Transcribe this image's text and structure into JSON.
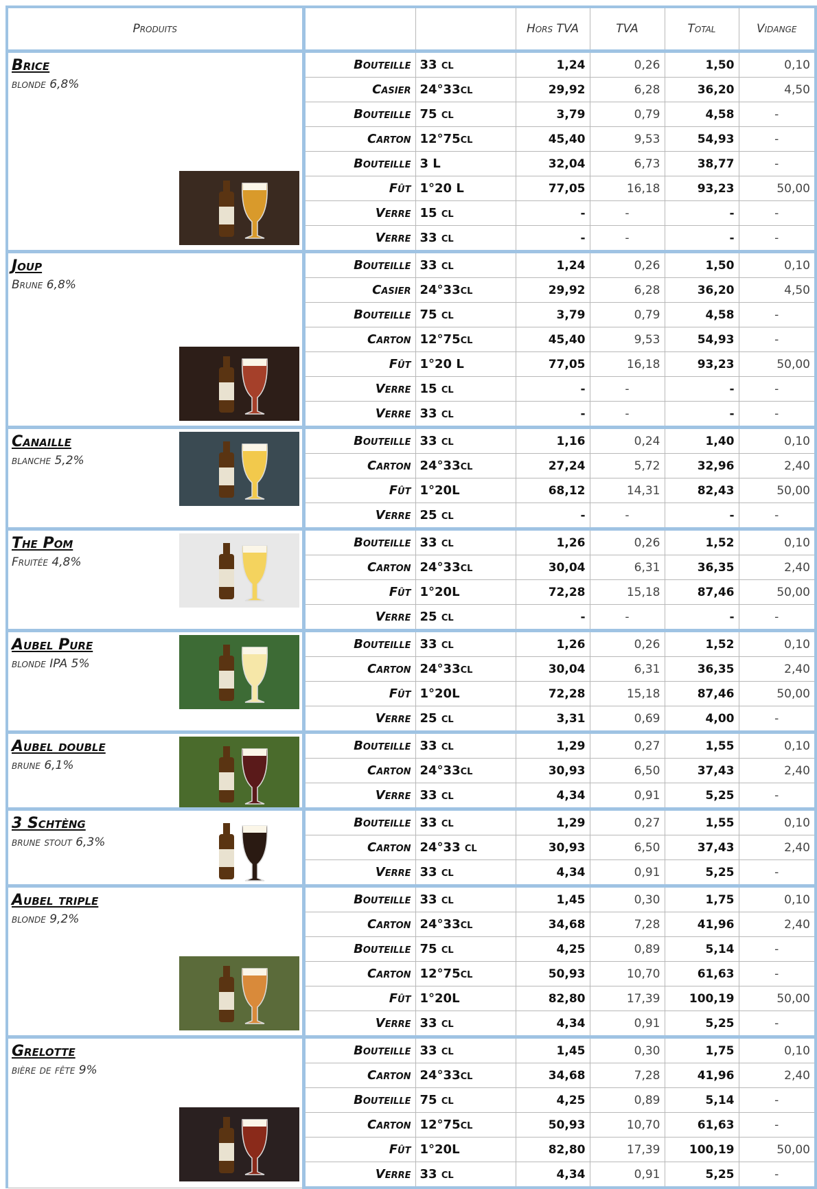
{
  "header": {
    "produits": "Produits",
    "hors_tva": "Hors TVA",
    "tva": "TVA",
    "total": "Total",
    "vidange": "Vidange"
  },
  "products": [
    {
      "name": "Brice",
      "desc": "blonde 6,8%",
      "rows": [
        [
          "Bouteille",
          "33 cl",
          "1,24",
          "0,26",
          "1,50",
          "0,10"
        ],
        [
          "Casier",
          "24°33cl",
          "29,92",
          "6,28",
          "36,20",
          "4,50"
        ],
        [
          "Bouteille",
          "75 cl",
          "3,79",
          "0,79",
          "4,58",
          "-"
        ],
        [
          "Carton",
          "12°75cl",
          "45,40",
          "9,53",
          "54,93",
          "-"
        ],
        [
          "Bouteille",
          "3 L",
          "32,04",
          "6,73",
          "38,77",
          "-"
        ],
        [
          "Fût",
          "1°20 L",
          "77,05",
          "16,18",
          "93,23",
          "50,00"
        ],
        [
          "Verre",
          "15 cl",
          "-",
          "-",
          "-",
          "-"
        ],
        [
          "Verre",
          "33 cl",
          "-",
          "-",
          "-",
          "-"
        ]
      ]
    },
    {
      "name": "Joup",
      "desc": "Brune 6,8%",
      "rows": [
        [
          "Bouteille",
          "33 cl",
          "1,24",
          "0,26",
          "1,50",
          "0,10"
        ],
        [
          "Casier",
          "24°33cl",
          "29,92",
          "6,28",
          "36,20",
          "4,50"
        ],
        [
          "Bouteille",
          "75 cl",
          "3,79",
          "0,79",
          "4,58",
          "-"
        ],
        [
          "Carton",
          "12°75cl",
          "45,40",
          "9,53",
          "54,93",
          "-"
        ],
        [
          "Fût",
          "1°20 L",
          "77,05",
          "16,18",
          "93,23",
          "50,00"
        ],
        [
          "Verre",
          "15 cl",
          "-",
          "-",
          "-",
          "-"
        ],
        [
          "Verre",
          "33 cl",
          "-",
          "-",
          "-",
          "-"
        ]
      ]
    },
    {
      "name": "Canaille",
      "desc": "blanche 5,2%",
      "rows": [
        [
          "Bouteille",
          "33 cl",
          "1,16",
          "0,24",
          "1,40",
          "0,10"
        ],
        [
          "Carton",
          "24°33cl",
          "27,24",
          "5,72",
          "32,96",
          "2,40"
        ],
        [
          "Fût",
          "1°20L",
          "68,12",
          "14,31",
          "82,43",
          "50,00"
        ],
        [
          "Verre",
          "25 cl",
          "-",
          "-",
          "-",
          "-"
        ]
      ]
    },
    {
      "name": "The Pom",
      "desc": "Fruitée 4,8%",
      "rows": [
        [
          "Bouteille",
          "33 cl",
          "1,26",
          "0,26",
          "1,52",
          "0,10"
        ],
        [
          "Carton",
          "24°33cl",
          "30,04",
          "6,31",
          "36,35",
          "2,40"
        ],
        [
          "Fût",
          "1°20L",
          "72,28",
          "15,18",
          "87,46",
          "50,00"
        ],
        [
          "Verre",
          "25 cl",
          "-",
          "-",
          "-",
          "-"
        ]
      ]
    },
    {
      "name": "Aubel Pure",
      "desc": "blonde IPA 5%",
      "rows": [
        [
          "Bouteille",
          "33 cl",
          "1,26",
          "0,26",
          "1,52",
          "0,10"
        ],
        [
          "Carton",
          "24°33cl",
          "30,04",
          "6,31",
          "36,35",
          "2,40"
        ],
        [
          "Fût",
          "1°20L",
          "72,28",
          "15,18",
          "87,46",
          "50,00"
        ],
        [
          "Verre",
          "25 cl",
          "3,31",
          "0,69",
          "4,00",
          "-"
        ]
      ]
    },
    {
      "name": "Aubel double",
      "desc": "brune 6,1%",
      "rows": [
        [
          "Bouteille",
          "33 cl",
          "1,29",
          "0,27",
          "1,55",
          "0,10"
        ],
        [
          "Carton",
          "24°33cl",
          "30,93",
          "6,50",
          "37,43",
          "2,40"
        ],
        [
          "Verre",
          "33 cl",
          "4,34",
          "0,91",
          "5,25",
          "-"
        ]
      ]
    },
    {
      "name": "3 Schtèng",
      "desc": "brune stout 6,3%",
      "rows": [
        [
          "Bouteille",
          "33 cl",
          "1,29",
          "0,27",
          "1,55",
          "0,10"
        ],
        [
          "Carton",
          "24°33 cl",
          "30,93",
          "6,50",
          "37,43",
          "2,40"
        ],
        [
          "Verre",
          "33 cl",
          "4,34",
          "0,91",
          "5,25",
          "-"
        ]
      ]
    },
    {
      "name": "Aubel triple",
      "desc": "blonde 9,2%",
      "rows": [
        [
          "Bouteille",
          "33 cl",
          "1,45",
          "0,30",
          "1,75",
          "0,10"
        ],
        [
          "Carton",
          "24°33cl",
          "34,68",
          "7,28",
          "41,96",
          "2,40"
        ],
        [
          "Bouteille",
          "75 cl",
          "4,25",
          "0,89",
          "5,14",
          "-"
        ],
        [
          "Carton",
          "12°75cl",
          "50,93",
          "10,70",
          "61,63",
          "-"
        ],
        [
          "Fût",
          "1°20L",
          "82,80",
          "17,39",
          "100,19",
          "50,00"
        ],
        [
          "Verre",
          "33 cl",
          "4,34",
          "0,91",
          "5,25",
          "-"
        ]
      ]
    },
    {
      "name": "Grelotte",
      "desc": "bière de fête 9%",
      "rows": [
        [
          "Bouteille",
          "33 cl",
          "1,45",
          "0,30",
          "1,75",
          "0,10"
        ],
        [
          "Carton",
          "24°33cl",
          "34,68",
          "7,28",
          "41,96",
          "2,40"
        ],
        [
          "Bouteille",
          "75 cl",
          "4,25",
          "0,89",
          "5,14",
          "-"
        ],
        [
          "Carton",
          "12°75cl",
          "50,93",
          "10,70",
          "61,63",
          "-"
        ],
        [
          "Fût",
          "1°20L",
          "82,80",
          "17,39",
          "100,19",
          "50,00"
        ],
        [
          "Verre",
          "33 cl",
          "4,34",
          "0,91",
          "5,25",
          "-"
        ]
      ]
    }
  ]
}
